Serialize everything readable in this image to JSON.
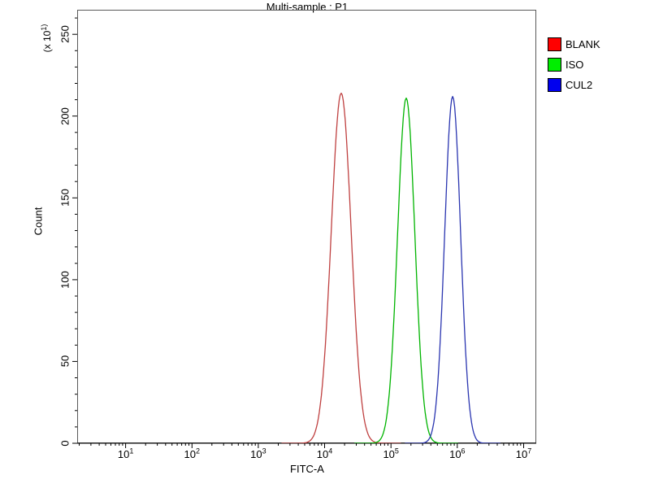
{
  "chart_data": {
    "type": "line",
    "chart_kind": "flow-cytometry-overlay-histogram",
    "title": "Multi-sample : P1",
    "xlabel": "FITC-A",
    "ylabel": "Count",
    "y_axis_multiplier": "(x 10^1)",
    "x_scale": "log10",
    "x_ticks": [
      "10^1",
      "10^2",
      "10^3",
      "10^4",
      "10^5",
      "10^6",
      "10^7"
    ],
    "x_range_log10": [
      0.27,
      7.19
    ],
    "y_ticks": [
      0,
      50,
      100,
      150,
      200,
      250
    ],
    "y_range": [
      0,
      265
    ],
    "grid": false,
    "legend_position": "top-right",
    "series": [
      {
        "name": "BLANK",
        "curve_color": "#bf4040",
        "peak_x": 18000,
        "peak_log10_x": 4.25,
        "peak_count": 214,
        "sigma_log10": 0.15
      },
      {
        "name": "ISO",
        "curve_color": "#00b400",
        "peak_x": 170000,
        "peak_log10_x": 5.23,
        "peak_count": 211,
        "sigma_log10": 0.13
      },
      {
        "name": "CUL2",
        "curve_color": "#2a35b0",
        "peak_x": 850000,
        "peak_log10_x": 5.93,
        "peak_count": 212,
        "sigma_log10": 0.12
      }
    ],
    "legend": [
      {
        "label": "BLANK",
        "color": "#ff0000"
      },
      {
        "label": "ISO",
        "color": "#00ee00"
      },
      {
        "label": "CUL2",
        "color": "#0000ee"
      }
    ]
  }
}
